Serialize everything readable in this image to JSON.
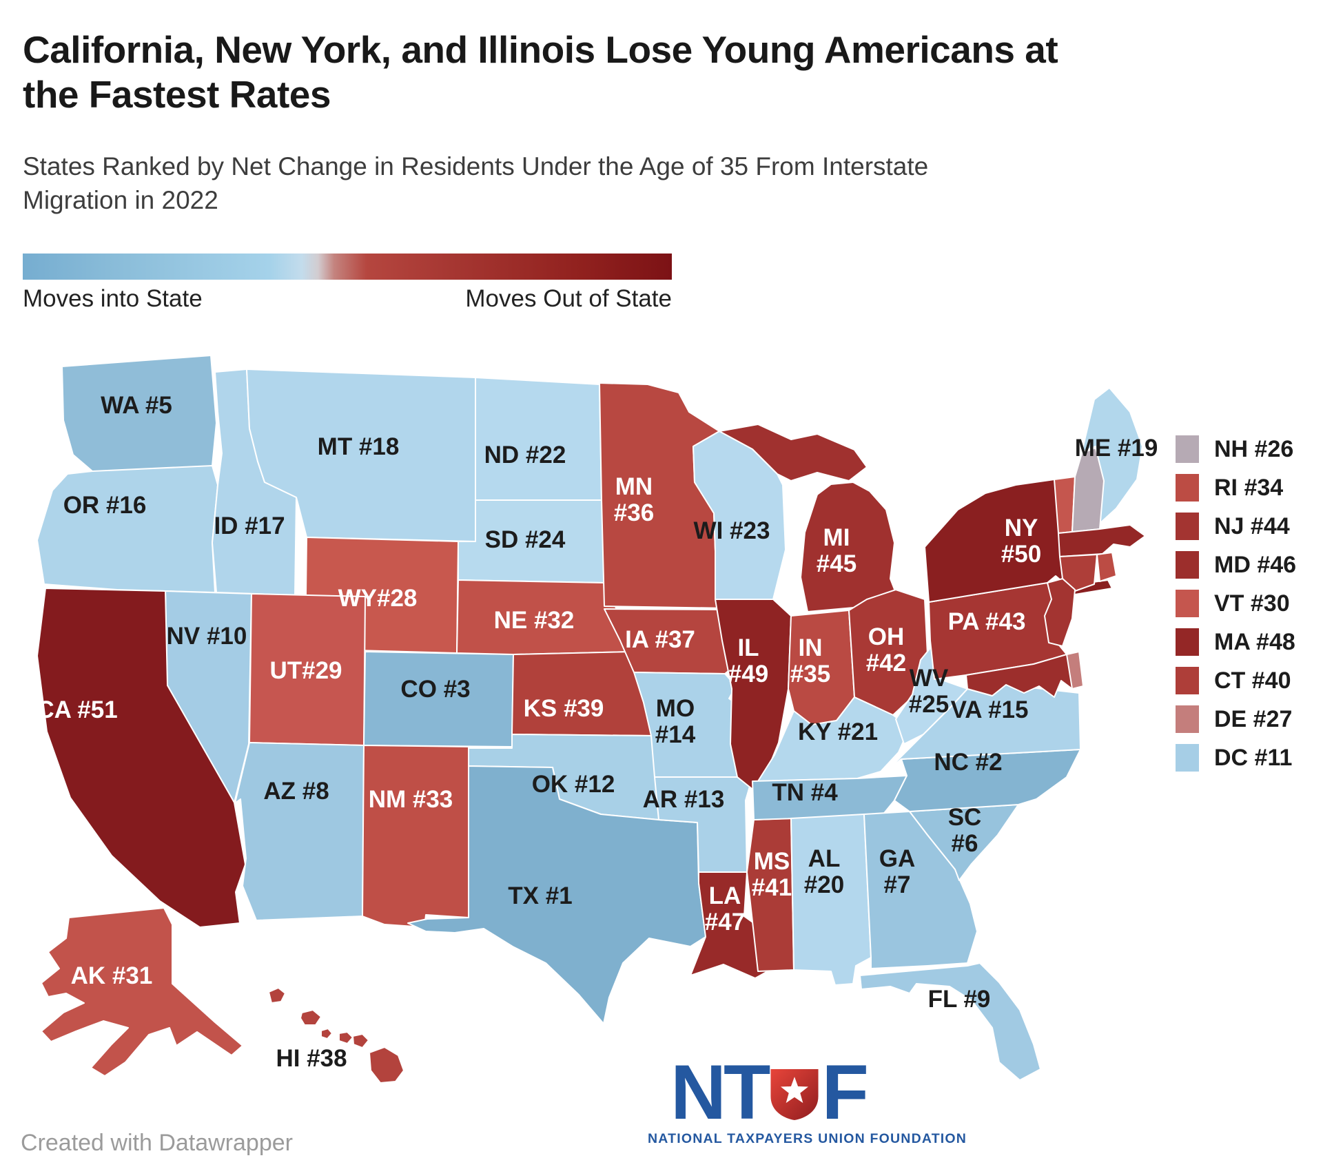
{
  "header": {
    "title": "California, New York, and Illinois Lose Young Americans at the Fastest Rates",
    "subtitle": "States Ranked by Net Change in Residents Under the Age of 35 From Interstate Migration in 2022"
  },
  "gradient_legend": {
    "left_label": "Moves into State",
    "right_label": "Moves Out of State",
    "blue_end_color": "#76add0",
    "red_end_color": "#7c1215"
  },
  "map": {
    "states": [
      {
        "abbr": "WA",
        "rank": 5,
        "label_lines": [
          "WA #5"
        ],
        "fill": "#90bdd8",
        "label_color": "#1c1c1c"
      },
      {
        "abbr": "OR",
        "rank": 16,
        "label_lines": [
          "OR #16"
        ],
        "fill": "#aed4ea",
        "label_color": "#1c1c1c"
      },
      {
        "abbr": "ID",
        "rank": 17,
        "label_lines": [
          "ID #17"
        ],
        "fill": "#b0d5eb",
        "label_color": "#1c1c1c"
      },
      {
        "abbr": "MT",
        "rank": 18,
        "label_lines": [
          "MT #18"
        ],
        "fill": "#b1d6ec",
        "label_color": "#1c1c1c"
      },
      {
        "abbr": "ND",
        "rank": 22,
        "label_lines": [
          "ND #22"
        ],
        "fill": "#b5d9ee",
        "label_color": "#1c1c1c"
      },
      {
        "abbr": "SD",
        "rank": 24,
        "label_lines": [
          "SD #24"
        ],
        "fill": "#b7daee",
        "label_color": "#1c1c1c"
      },
      {
        "abbr": "WY",
        "rank": 28,
        "label_lines": [
          "WY#28"
        ],
        "fill": "#c8584e",
        "label_color": "#ffffff"
      },
      {
        "abbr": "NV",
        "rank": 10,
        "label_lines": [
          "NV #10"
        ],
        "fill": "#a4cce5",
        "label_color": "#1c1c1c"
      },
      {
        "abbr": "UT",
        "rank": 29,
        "label_lines": [
          "UT#29"
        ],
        "fill": "#c65650",
        "label_color": "#ffffff"
      },
      {
        "abbr": "CO",
        "rank": 3,
        "label_lines": [
          "CO #3"
        ],
        "fill": "#88b7d4",
        "label_color": "#1c1c1c"
      },
      {
        "abbr": "CA",
        "rank": 51,
        "label_lines": [
          "CA #51"
        ],
        "fill": "#841b1e",
        "label_color": "#ffffff"
      },
      {
        "abbr": "AZ",
        "rank": 8,
        "label_lines": [
          "AZ #8"
        ],
        "fill": "#9ec8e1",
        "label_color": "#1c1c1c"
      },
      {
        "abbr": "NM",
        "rank": 33,
        "label_lines": [
          "NM #33"
        ],
        "fill": "#bf4f47",
        "label_color": "#ffffff"
      },
      {
        "abbr": "NE",
        "rank": 32,
        "label_lines": [
          "NE #32"
        ],
        "fill": "#c15149",
        "label_color": "#ffffff"
      },
      {
        "abbr": "KS",
        "rank": 39,
        "label_lines": [
          "KS #39"
        ],
        "fill": "#b1413b",
        "label_color": "#ffffff"
      },
      {
        "abbr": "OK",
        "rank": 12,
        "label_lines": [
          "OK #12"
        ],
        "fill": "#a8d0e7",
        "label_color": "#1c1c1c"
      },
      {
        "abbr": "TX",
        "rank": 1,
        "label_lines": [
          "TX #1"
        ],
        "fill": "#7fb0ce",
        "label_color": "#1c1c1c"
      },
      {
        "abbr": "MN",
        "rank": 36,
        "label_lines": [
          "MN",
          "#36"
        ],
        "fill": "#b84841",
        "label_color": "#ffffff"
      },
      {
        "abbr": "IA",
        "rank": 37,
        "label_lines": [
          "IA #37"
        ],
        "fill": "#b5453f",
        "label_color": "#ffffff"
      },
      {
        "abbr": "MO",
        "rank": 14,
        "label_lines": [
          "MO",
          "#14"
        ],
        "fill": "#abd2e9",
        "label_color": "#1c1c1c"
      },
      {
        "abbr": "AR",
        "rank": 13,
        "label_lines": [
          "AR #13"
        ],
        "fill": "#aad1e8",
        "label_color": "#1c1c1c"
      },
      {
        "abbr": "LA",
        "rank": 47,
        "label_lines": [
          "LA",
          "#47"
        ],
        "fill": "#982a29",
        "label_color": "#ffffff"
      },
      {
        "abbr": "WI",
        "rank": 23,
        "label_lines": [
          "WI #23"
        ],
        "fill": "#b6d9ee",
        "label_color": "#1c1c1c"
      },
      {
        "abbr": "IL",
        "rank": 49,
        "label_lines": [
          "IL",
          "#49"
        ],
        "fill": "#8f2323",
        "label_color": "#ffffff"
      },
      {
        "abbr": "MS",
        "rank": 41,
        "label_lines": [
          "MS",
          "#41"
        ],
        "fill": "#ab3c37",
        "label_color": "#ffffff"
      },
      {
        "abbr": "MI",
        "rank": 45,
        "label_lines": [
          "MI",
          "#45"
        ],
        "fill": "#a0312f",
        "label_color": "#ffffff"
      },
      {
        "abbr": "MI_UP",
        "rank": 45,
        "label_lines": [],
        "fill": "#a0312f",
        "label_color": "#ffffff"
      },
      {
        "abbr": "IN",
        "rank": 35,
        "label_lines": [
          "IN",
          "#35"
        ],
        "fill": "#ba4a43",
        "label_color": "#ffffff"
      },
      {
        "abbr": "OH",
        "rank": 42,
        "label_lines": [
          "OH",
          "#42"
        ],
        "fill": "#a93935",
        "label_color": "#ffffff"
      },
      {
        "abbr": "KY",
        "rank": 21,
        "label_lines": [
          "KY #21"
        ],
        "fill": "#b4d8ed",
        "label_color": "#1c1c1c"
      },
      {
        "abbr": "TN",
        "rank": 4,
        "label_lines": [
          "TN #4"
        ],
        "fill": "#8cbad6",
        "label_color": "#1c1c1c"
      },
      {
        "abbr": "AL",
        "rank": 20,
        "label_lines": [
          "AL",
          "#20"
        ],
        "fill": "#b3d7ed",
        "label_color": "#1c1c1c"
      },
      {
        "abbr": "GA",
        "rank": 7,
        "label_lines": [
          "GA",
          "#7"
        ],
        "fill": "#9ac5df",
        "label_color": "#1c1c1c"
      },
      {
        "abbr": "FL",
        "rank": 9,
        "label_lines": [
          "FL #9"
        ],
        "fill": "#a1cae3",
        "label_color": "#1c1c1c"
      },
      {
        "abbr": "SC",
        "rank": 6,
        "label_lines": [
          "SC",
          "#6"
        ],
        "fill": "#97c3dd",
        "label_color": "#1c1c1c"
      },
      {
        "abbr": "NC",
        "rank": 2,
        "label_lines": [
          "NC #2"
        ],
        "fill": "#84b4d1",
        "label_color": "#1c1c1c"
      },
      {
        "abbr": "VA",
        "rank": 15,
        "label_lines": [
          "VA #15"
        ],
        "fill": "#add3ea",
        "label_color": "#1c1c1c"
      },
      {
        "abbr": "WV",
        "rank": 25,
        "label_lines": [
          "WV",
          "#25"
        ],
        "fill": "#b8daef",
        "label_color": "#1c1c1c"
      },
      {
        "abbr": "PA",
        "rank": 43,
        "label_lines": [
          "PA #43"
        ],
        "fill": "#a63633",
        "label_color": "#ffffff"
      },
      {
        "abbr": "NY",
        "rank": 50,
        "label_lines": [
          "NY",
          "#50"
        ],
        "fill": "#8a1f20",
        "label_color": "#ffffff"
      },
      {
        "abbr": "NY_LI",
        "rank": 50,
        "label_lines": [],
        "fill": "#8a1f20",
        "label_color": "#ffffff"
      },
      {
        "abbr": "ME",
        "rank": 19,
        "label_lines": [
          "ME #19"
        ],
        "fill": "#b2d7ec",
        "label_color": "#1c1c1c"
      },
      {
        "abbr": "VT",
        "rank": 30,
        "label_lines": [],
        "fill": "#c5564e",
        "label_color": "#ffffff"
      },
      {
        "abbr": "NH",
        "rank": 26,
        "label_lines": [],
        "fill": "#b6aab4",
        "label_color": "#1c1c1c"
      },
      {
        "abbr": "MA",
        "rank": 48,
        "label_lines": [],
        "fill": "#942726",
        "label_color": "#ffffff"
      },
      {
        "abbr": "CT",
        "rank": 40,
        "label_lines": [],
        "fill": "#ae3e39",
        "label_color": "#ffffff"
      },
      {
        "abbr": "RI",
        "rank": 34,
        "label_lines": [],
        "fill": "#bc4c44",
        "label_color": "#ffffff"
      },
      {
        "abbr": "NJ",
        "rank": 44,
        "label_lines": [],
        "fill": "#a33431",
        "label_color": "#ffffff"
      },
      {
        "abbr": "MD",
        "rank": 46,
        "label_lines": [],
        "fill": "#9c2e2c",
        "label_color": "#ffffff"
      },
      {
        "abbr": "DE",
        "rank": 27,
        "label_lines": [],
        "fill": "#c47e7c",
        "label_color": "#1c1c1c"
      },
      {
        "abbr": "AK",
        "rank": 31,
        "label_lines": [
          "AK #31"
        ],
        "fill": "#c2534b",
        "label_color": "#ffffff"
      },
      {
        "abbr": "HI",
        "rank": 38,
        "label_lines": [
          "HI #38"
        ],
        "fill": "#b3433d",
        "label_color": "#1c1c1c"
      }
    ]
  },
  "side_legend": {
    "items": [
      {
        "label": "NH #26",
        "color": "#b6aab4"
      },
      {
        "label": "RI #34",
        "color": "#bc4c44"
      },
      {
        "label": "NJ #44",
        "color": "#a33431"
      },
      {
        "label": "MD #46",
        "color": "#9c2e2c"
      },
      {
        "label": "VT #30",
        "color": "#c5564e"
      },
      {
        "label": "MA #48",
        "color": "#942726"
      },
      {
        "label": "CT #40",
        "color": "#ae3e39"
      },
      {
        "label": "DE #27",
        "color": "#c47e7c"
      },
      {
        "label": "DC #11",
        "color": "#a6cee6"
      }
    ]
  },
  "footer": {
    "credit": "Created with Datawrapper"
  },
  "logo": {
    "letters_left": "NT",
    "letters_right": "F",
    "tagline": "NATIONAL TAXPAYERS UNION FOUNDATION",
    "blue": "#2458a0",
    "red": "#cf2e36"
  },
  "chart_data": {
    "type": "heatmap",
    "subtype": "us-choropleth",
    "title": "California, New York, and Illinois Lose Young Americans at the Fastest Rates",
    "subtitle": "States Ranked by Net Change in Residents Under the Age of 35 From Interstate Migration in 2022",
    "scale_labels": {
      "low": "Moves into State",
      "high": "Moves Out of State"
    },
    "value_meaning": "rank 1 = largest net gain of residents under 35; rank 51 = largest net loss",
    "categories": [
      "TX",
      "NC",
      "CO",
      "TN",
      "WA",
      "SC",
      "GA",
      "AZ",
      "FL",
      "NV",
      "DC",
      "OK",
      "AR",
      "MO",
      "VA",
      "OR",
      "ID",
      "MT",
      "ME",
      "AL",
      "KY",
      "ND",
      "WI",
      "SD",
      "WV",
      "NH",
      "DE",
      "WY",
      "UT",
      "VT",
      "AK",
      "NE",
      "NM",
      "RI",
      "IN",
      "MN",
      "IA",
      "HI",
      "KS",
      "CT",
      "MS",
      "OH",
      "PA",
      "NJ",
      "MI",
      "MD",
      "LA",
      "MA",
      "IL",
      "NY",
      "CA"
    ],
    "values": [
      1,
      2,
      3,
      4,
      5,
      6,
      7,
      8,
      9,
      10,
      11,
      12,
      13,
      14,
      15,
      16,
      17,
      18,
      19,
      20,
      21,
      22,
      23,
      24,
      25,
      26,
      27,
      28,
      29,
      30,
      31,
      32,
      33,
      34,
      35,
      36,
      37,
      38,
      39,
      40,
      41,
      42,
      43,
      44,
      45,
      46,
      47,
      48,
      49,
      50,
      51
    ],
    "legend_position": "right-for-small-states"
  }
}
